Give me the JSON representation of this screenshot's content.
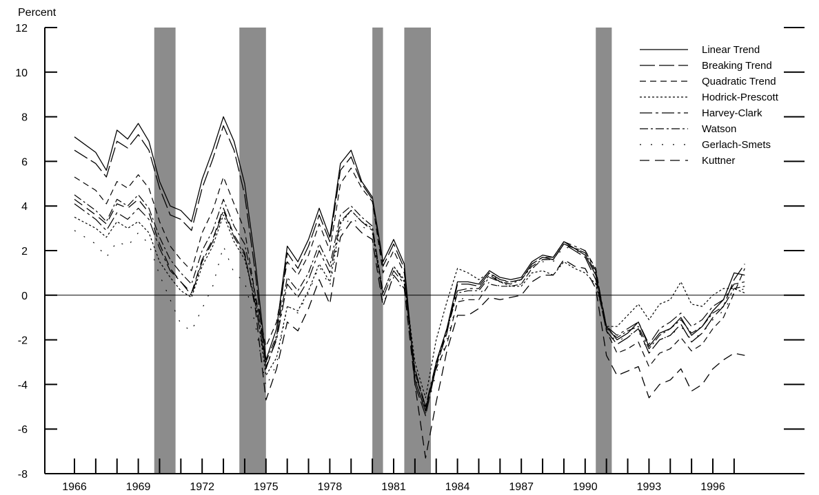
{
  "chart_data": {
    "type": "line",
    "title": "",
    "ylabel": "Percent",
    "xlabel": "",
    "xlim": [
      1965.5,
      1998
    ],
    "ylim": [
      -8,
      12
    ],
    "yticks": [
      -8,
      -6,
      -4,
      -2,
      0,
      2,
      4,
      6,
      8,
      10,
      12
    ],
    "xtick_labels": [
      "1966",
      "1969",
      "1972",
      "1975",
      "1978",
      "1981",
      "1984",
      "1987",
      "1990",
      "1993",
      "1996"
    ],
    "xtick_values": [
      1966,
      1969,
      1972,
      1975,
      1978,
      1981,
      1984,
      1987,
      1990,
      1993,
      1996
    ],
    "zero_line": true,
    "legend_position": "top-right",
    "recessions": [
      [
        1969.75,
        1970.75
      ],
      [
        1973.75,
        1975.0
      ],
      [
        1980.0,
        1980.5
      ],
      [
        1981.5,
        1982.75
      ],
      [
        1990.5,
        1991.25
      ]
    ],
    "colors": {
      "line": "#000000",
      "recession": "#8c8c8c"
    },
    "x": [
      1966.0,
      1967.0,
      1967.5,
      1968.0,
      1968.5,
      1969.0,
      1969.5,
      1970.0,
      1970.5,
      1971.0,
      1971.5,
      1972.0,
      1972.5,
      1973.0,
      1973.5,
      1974.0,
      1974.5,
      1975.0,
      1975.5,
      1976.0,
      1976.5,
      1977.0,
      1977.5,
      1978.0,
      1978.5,
      1979.0,
      1979.5,
      1980.0,
      1980.5,
      1981.0,
      1981.5,
      1982.0,
      1982.5,
      1983.0,
      1983.5,
      1984.0,
      1984.5,
      1985.0,
      1985.5,
      1986.0,
      1986.5,
      1987.0,
      1987.5,
      1988.0,
      1988.5,
      1989.0,
      1989.5,
      1990.0,
      1990.5,
      1991.0,
      1991.5,
      1992.0,
      1992.5,
      1993.0,
      1993.5,
      1994.0,
      1994.5,
      1995.0,
      1995.5,
      1996.0,
      1996.5,
      1997.0,
      1997.5
    ],
    "series": [
      {
        "name": "Linear Trend",
        "values": [
          7.1,
          6.4,
          5.6,
          7.4,
          7.0,
          7.7,
          6.9,
          5.1,
          4.0,
          3.8,
          3.3,
          5.2,
          6.5,
          8.0,
          6.9,
          5.0,
          1.5,
          -2.9,
          -1.5,
          2.2,
          1.5,
          2.5,
          3.9,
          2.6,
          5.9,
          6.5,
          5.1,
          4.4,
          1.5,
          2.5,
          1.4,
          -3.8,
          -5.2,
          -3.0,
          -1.5,
          0.6,
          0.6,
          0.5,
          1.1,
          0.8,
          0.7,
          0.8,
          1.5,
          1.8,
          1.7,
          2.4,
          2.1,
          1.8,
          0.9,
          -1.4,
          -2.0,
          -1.7,
          -1.2,
          -2.3,
          -1.7,
          -1.5,
          -1.0,
          -1.8,
          -1.4,
          -0.7,
          -0.2,
          1.0,
          0.9
        ]
      },
      {
        "name": "Breaking Trend",
        "values": [
          6.5,
          5.9,
          5.3,
          6.9,
          6.6,
          7.2,
          6.5,
          4.8,
          3.6,
          3.4,
          2.9,
          4.8,
          6.1,
          7.6,
          6.5,
          4.5,
          1.0,
          -3.3,
          -1.9,
          1.9,
          1.2,
          2.2,
          3.6,
          2.4,
          5.6,
          6.2,
          5.0,
          4.3,
          1.3,
          2.3,
          1.2,
          -4.0,
          -5.4,
          -3.2,
          -1.7,
          0.5,
          0.5,
          0.4,
          1.0,
          0.7,
          0.6,
          0.7,
          1.4,
          1.7,
          1.6,
          2.3,
          2.0,
          1.7,
          0.7,
          -1.6,
          -2.2,
          -1.9,
          -1.5,
          -2.6,
          -2.0,
          -1.8,
          -1.3,
          -2.1,
          -1.7,
          -1.0,
          -0.5,
          0.7,
          1.4
        ]
      },
      {
        "name": "Quadratic Trend",
        "values": [
          5.3,
          4.7,
          4.1,
          5.1,
          4.8,
          5.4,
          4.8,
          3.3,
          2.2,
          1.6,
          1.1,
          2.8,
          3.8,
          5.3,
          4.1,
          2.9,
          0.0,
          -2.3,
          -1.2,
          1.5,
          0.9,
          1.8,
          3.2,
          2.0,
          5.0,
          5.7,
          4.8,
          4.2,
          1.0,
          2.0,
          1.0,
          -3.5,
          -5.0,
          -3.3,
          -2.2,
          -0.3,
          -0.2,
          -0.2,
          0.5,
          0.4,
          0.4,
          0.5,
          1.2,
          1.6,
          1.6,
          2.3,
          2.1,
          2.0,
          1.2,
          -1.6,
          -2.6,
          -2.4,
          -2.1,
          -3.2,
          -2.6,
          -2.4,
          -1.9,
          -2.5,
          -2.2,
          -1.5,
          -1.0,
          0.1,
          1.2
        ]
      },
      {
        "name": "Hodrick-Prescott",
        "values": [
          3.5,
          3.0,
          2.6,
          3.3,
          3.0,
          3.3,
          2.8,
          1.5,
          0.8,
          0.2,
          -0.1,
          1.3,
          2.2,
          3.6,
          2.4,
          1.6,
          -0.2,
          -3.6,
          -2.8,
          -0.5,
          -0.7,
          0.2,
          1.4,
          0.6,
          3.2,
          3.8,
          3.3,
          3.0,
          0.1,
          1.3,
          0.7,
          -3.0,
          -4.6,
          -2.0,
          -0.3,
          1.2,
          1.0,
          0.7,
          1.0,
          0.6,
          0.4,
          0.4,
          1.0,
          1.1,
          0.9,
          1.5,
          1.2,
          1.0,
          0.5,
          -1.4,
          -1.4,
          -0.9,
          -0.4,
          -1.1,
          -0.4,
          -0.2,
          0.6,
          -0.4,
          -0.5,
          0.0,
          0.3,
          0.3,
          0.1
        ]
      },
      {
        "name": "Harvey-Clark",
        "values": [
          4.1,
          3.4,
          2.9,
          3.7,
          3.4,
          3.9,
          3.4,
          2.1,
          1.1,
          0.6,
          0.0,
          1.5,
          2.4,
          3.8,
          2.6,
          1.8,
          -0.4,
          -3.2,
          -2.0,
          0.5,
          -0.1,
          0.7,
          2.0,
          1.0,
          3.3,
          3.8,
          3.3,
          2.9,
          -0.1,
          1.1,
          0.5,
          -3.3,
          -5.0,
          -3.0,
          -1.5,
          0.2,
          0.3,
          0.3,
          0.9,
          0.6,
          0.6,
          0.7,
          1.4,
          1.7,
          1.7,
          2.4,
          2.2,
          2.0,
          1.1,
          -1.4,
          -1.8,
          -1.5,
          -1.2,
          -2.2,
          -1.5,
          -1.2,
          -0.8,
          -1.4,
          -1.1,
          -0.5,
          -0.2,
          0.5,
          0.6
        ]
      },
      {
        "name": "Watson",
        "values": [
          4.5,
          3.8,
          3.3,
          4.3,
          4.0,
          4.5,
          3.9,
          2.6,
          1.6,
          1.0,
          0.5,
          2.0,
          2.9,
          4.3,
          3.1,
          2.3,
          0.0,
          -3.0,
          -1.8,
          0.8,
          0.2,
          1.0,
          2.3,
          1.3,
          3.6,
          4.0,
          3.5,
          3.1,
          0.1,
          1.3,
          0.6,
          -3.4,
          -5.1,
          -3.1,
          -1.6,
          0.1,
          0.2,
          0.2,
          0.8,
          0.6,
          0.5,
          0.7,
          1.3,
          1.6,
          1.6,
          2.3,
          2.1,
          1.9,
          1.0,
          -1.5,
          -1.9,
          -1.6,
          -1.4,
          -2.4,
          -1.8,
          -1.5,
          -1.1,
          -1.7,
          -1.4,
          -0.8,
          -0.5,
          0.3,
          0.4
        ]
      },
      {
        "name": "Gerlach-Smets",
        "values": [
          2.9,
          2.3,
          1.7,
          2.4,
          2.2,
          2.8,
          2.3,
          0.9,
          -0.2,
          -1.3,
          -1.6,
          -0.6,
          0.4,
          2.2,
          1.0,
          0.6,
          -1.3,
          -4.1,
          -3.1,
          -0.5,
          -0.8,
          0.1,
          1.3,
          0.4,
          2.9,
          3.5,
          3.1,
          2.8,
          -0.4,
          0.8,
          0.2,
          -3.6,
          -5.3,
          -3.5,
          -2.0,
          -0.3,
          0.0,
          0.0,
          0.6,
          0.4,
          0.4,
          0.5,
          1.2,
          1.5,
          1.5,
          2.2,
          2.0,
          1.9,
          1.0,
          -1.6,
          -2.1,
          -1.8,
          -1.6,
          -2.6,
          -2.0,
          -1.8,
          -1.4,
          -2.0,
          -1.7,
          -1.1,
          -0.7,
          0.1,
          0.3
        ]
      },
      {
        "name": "Kuttner",
        "values": [
          4.3,
          3.6,
          3.2,
          4.1,
          3.9,
          4.3,
          3.7,
          2.3,
          1.2,
          0.6,
          0.1,
          1.6,
          2.5,
          3.9,
          2.7,
          1.9,
          -0.6,
          -4.7,
          -3.3,
          -1.2,
          -1.6,
          -0.6,
          0.7,
          -0.4,
          2.6,
          3.3,
          2.8,
          2.5,
          -0.5,
          0.9,
          0.3,
          -4.0,
          -7.3,
          -4.8,
          -2.5,
          -0.9,
          -0.9,
          -0.6,
          -0.1,
          -0.2,
          -0.1,
          0.0,
          0.6,
          0.9,
          0.9,
          1.6,
          1.3,
          1.2,
          0.3,
          -2.7,
          -3.6,
          -3.4,
          -3.2,
          -4.6,
          -4.0,
          -3.8,
          -3.3,
          -4.3,
          -4.0,
          -3.3,
          -2.9,
          -2.6,
          -2.7
        ]
      }
    ]
  }
}
